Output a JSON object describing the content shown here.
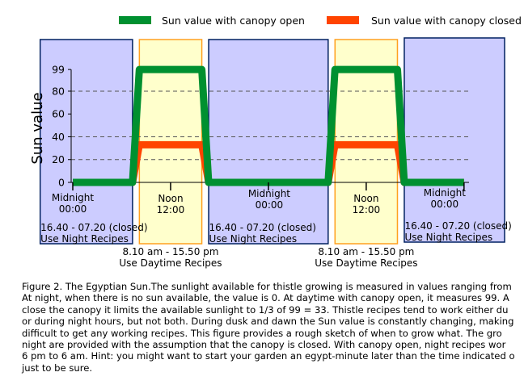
{
  "chart_data": {
    "type": "line",
    "title": "",
    "xlabel": "",
    "ylabel": "Sun value",
    "ylim": [
      0,
      99
    ],
    "yticks": [
      0,
      20,
      40,
      60,
      80,
      99
    ],
    "dashed_gridlines": [
      20,
      40,
      80
    ],
    "x": [
      "00:00",
      "07:20",
      "08:10",
      "12:00",
      "15:50",
      "16:40",
      "24:00",
      "31:20",
      "32:10",
      "36:00",
      "39:50",
      "40:40",
      "48:00"
    ],
    "series": [
      {
        "name": "Sun value with canopy open",
        "color": "#009030",
        "values": [
          0,
          0,
          99,
          99,
          99,
          0,
          0,
          0,
          99,
          99,
          99,
          0,
          0
        ]
      },
      {
        "name": "Sun value with canopy closed",
        "color": "#ff4400",
        "values": [
          0,
          0,
          33,
          33,
          33,
          0,
          0,
          0,
          33,
          33,
          33,
          0,
          0
        ]
      }
    ],
    "legend": [
      {
        "label": "Sun value with canopy open",
        "color": "#009030"
      },
      {
        "label": "Sun value with canopy closed",
        "color": "#ff4400"
      }
    ],
    "time_markers": [
      {
        "name": "Midnight",
        "time": "00:00",
        "x": 0
      },
      {
        "name": "Noon",
        "time": "12:00",
        "x": 12
      },
      {
        "name": "Midnight",
        "time": "00:00",
        "x": 24
      },
      {
        "name": "Noon",
        "time": "12:00",
        "x": 36
      },
      {
        "name": "Midnight",
        "time": "00:00",
        "x": 48
      }
    ],
    "periods": [
      {
        "kind": "night",
        "x_start": -4,
        "x_end": 7.33,
        "fill": "#ccccff",
        "stroke": "#002060",
        "label_time": "16.40 - 07.20 (closed)",
        "label_use": "Use Night Recipes"
      },
      {
        "kind": "day",
        "x_start": 8.17,
        "x_end": 15.83,
        "fill": "#ffffcc",
        "stroke": "#ffa020",
        "label_time": "8.10 am - 15.50 pm",
        "label_use": "Use Daytime Recipes"
      },
      {
        "kind": "night",
        "x_start": 16.67,
        "x_end": 31.33,
        "fill": "#ccccff",
        "stroke": "#002060",
        "label_time": "16.40 - 07.20 (closed)",
        "label_use": "Use Night Recipes"
      },
      {
        "kind": "day",
        "x_start": 32.17,
        "x_end": 39.83,
        "fill": "#ffffcc",
        "stroke": "#ffa020",
        "label_time": "8.10 am - 15.50 pm",
        "label_use": "Use Daytime Recipes"
      },
      {
        "kind": "night",
        "x_start": 40.67,
        "x_end": 53,
        "fill": "#ccccff",
        "stroke": "#002060",
        "label_time": "16.40 - 07.20 (closed)",
        "label_use": "Use Night Recipes"
      }
    ]
  },
  "caption": [
    "Figure 2. The Egyptian Sun.The sunlight available for thistle growing is measured in values ranging from",
    "At night, when there is no sun available, the value is 0. At daytime with canopy open, it measures 99. A",
    "close the canopy it limits the available sunlight to 1/3 of 99 = 33. Thistle recipes tend to work either du",
    "or during night hours, but not both. During dusk and dawn the Sun value is constantly changing, making",
    "difficult to get any working recipes. This figure provides a rough sketch of when to grow what. The gro",
    "night are provided with the assumption that the canopy is closed. With canopy open, night recipes wor",
    "6 pm to 6 am. Hint: you might want to start your garden an egypt-minute later than the time indicated o",
    "just to be sure."
  ]
}
